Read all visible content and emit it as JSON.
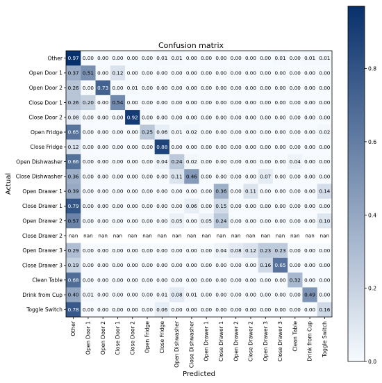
{
  "chart_data": {
    "type": "heatmap",
    "title": "Confusion matrix",
    "xlabel": "Predicted",
    "ylabel": "Actual",
    "labels": [
      "Other",
      "Open Door 1",
      "Open Door 2",
      "Close Door 1",
      "Close Door 2",
      "Open Fridge",
      "Close Fridge",
      "Open Dishwasher",
      "Close Dishwasher",
      "Open Drawer 1",
      "Close Drawer 1",
      "Open Drawer 2",
      "Close Drawer 2",
      "Open Drawer 3",
      "Close Drawer 3",
      "Clean Table",
      "Drink from Cup",
      "Toggle Switch"
    ],
    "matrix": [
      [
        "0.97",
        "0.00",
        "0.00",
        "0.00",
        "0.00",
        "0.00",
        "0.01",
        "0.01",
        "0.00",
        "0.00",
        "0.00",
        "0.00",
        "0.00",
        "0.00",
        "0.01",
        "0.00",
        "0.01",
        "0.01"
      ],
      [
        "0.37",
        "0.51",
        "0.00",
        "0.12",
        "0.00",
        "0.00",
        "0.00",
        "0.00",
        "0.00",
        "0.00",
        "0.00",
        "0.00",
        "0.00",
        "0.00",
        "0.00",
        "0.00",
        "0.00",
        "0.00"
      ],
      [
        "0.26",
        "0.00",
        "0.73",
        "0.00",
        "0.01",
        "0.00",
        "0.00",
        "0.00",
        "0.00",
        "0.00",
        "0.00",
        "0.00",
        "0.00",
        "0.00",
        "0.00",
        "0.00",
        "0.00",
        "0.00"
      ],
      [
        "0.26",
        "0.20",
        "0.00",
        "0.54",
        "0.00",
        "0.00",
        "0.00",
        "0.00",
        "0.00",
        "0.00",
        "0.00",
        "0.00",
        "0.00",
        "0.00",
        "0.00",
        "0.00",
        "0.00",
        "0.00"
      ],
      [
        "0.08",
        "0.00",
        "0.00",
        "0.00",
        "0.92",
        "0.00",
        "0.00",
        "0.00",
        "0.00",
        "0.00",
        "0.00",
        "0.00",
        "0.00",
        "0.00",
        "0.00",
        "0.00",
        "0.00",
        "0.00"
      ],
      [
        "0.65",
        "0.00",
        "0.00",
        "0.00",
        "0.00",
        "0.25",
        "0.06",
        "0.01",
        "0.02",
        "0.00",
        "0.00",
        "0.00",
        "0.00",
        "0.00",
        "0.00",
        "0.00",
        "0.00",
        "0.02"
      ],
      [
        "0.12",
        "0.00",
        "0.00",
        "0.00",
        "0.00",
        "0.00",
        "0.88",
        "0.00",
        "0.00",
        "0.00",
        "0.00",
        "0.00",
        "0.00",
        "0.00",
        "0.00",
        "0.00",
        "0.00",
        "0.00"
      ],
      [
        "0.66",
        "0.00",
        "0.00",
        "0.00",
        "0.00",
        "0.00",
        "0.04",
        "0.24",
        "0.02",
        "0.00",
        "0.00",
        "0.00",
        "0.00",
        "0.00",
        "0.00",
        "0.04",
        "0.00",
        "0.00"
      ],
      [
        "0.36",
        "0.00",
        "0.00",
        "0.00",
        "0.00",
        "0.00",
        "0.00",
        "0.11",
        "0.46",
        "0.00",
        "0.00",
        "0.00",
        "0.00",
        "0.07",
        "0.00",
        "0.00",
        "0.00",
        "0.00"
      ],
      [
        "0.39",
        "0.00",
        "0.00",
        "0.00",
        "0.00",
        "0.00",
        "0.00",
        "0.00",
        "0.00",
        "0.00",
        "0.36",
        "0.00",
        "0.11",
        "0.00",
        "0.00",
        "0.00",
        "0.00",
        "0.14"
      ],
      [
        "0.79",
        "0.00",
        "0.00",
        "0.00",
        "0.00",
        "0.00",
        "0.00",
        "0.00",
        "0.06",
        "0.00",
        "0.15",
        "0.00",
        "0.00",
        "0.00",
        "0.00",
        "0.00",
        "0.00",
        "0.00"
      ],
      [
        "0.57",
        "0.00",
        "0.00",
        "0.00",
        "0.00",
        "0.00",
        "0.00",
        "0.05",
        "0.00",
        "0.05",
        "0.24",
        "0.00",
        "0.00",
        "0.00",
        "0.00",
        "0.00",
        "0.00",
        "0.10"
      ],
      [
        "nan",
        "nan",
        "nan",
        "nan",
        "nan",
        "nan",
        "nan",
        "nan",
        "nan",
        "nan",
        "nan",
        "nan",
        "nan",
        "nan",
        "nan",
        "nan",
        "nan",
        "nan"
      ],
      [
        "0.29",
        "0.00",
        "0.00",
        "0.00",
        "0.00",
        "0.00",
        "0.00",
        "0.00",
        "0.00",
        "0.00",
        "0.04",
        "0.08",
        "0.12",
        "0.23",
        "0.23",
        "0.00",
        "0.00",
        "0.00"
      ],
      [
        "0.19",
        "0.00",
        "0.00",
        "0.00",
        "0.00",
        "0.00",
        "0.00",
        "0.00",
        "0.00",
        "0.00",
        "0.00",
        "0.00",
        "0.00",
        "0.16",
        "0.65",
        "0.00",
        "0.00",
        "0.00"
      ],
      [
        "0.68",
        "0.00",
        "0.00",
        "0.00",
        "0.00",
        "0.00",
        "0.00",
        "0.00",
        "0.00",
        "0.00",
        "0.00",
        "0.00",
        "0.00",
        "0.00",
        "0.00",
        "0.32",
        "0.00",
        "0.00"
      ],
      [
        "0.40",
        "0.01",
        "0.00",
        "0.00",
        "0.00",
        "0.00",
        "0.01",
        "0.08",
        "0.01",
        "0.00",
        "0.00",
        "0.00",
        "0.00",
        "0.00",
        "0.00",
        "0.00",
        "0.49",
        "0.00"
      ],
      [
        "0.78",
        "0.00",
        "0.00",
        "0.00",
        "0.00",
        "0.00",
        "0.06",
        "0.00",
        "0.00",
        "0.00",
        "0.00",
        "0.00",
        "0.00",
        "0.00",
        "0.00",
        "0.00",
        "0.00",
        "0.16"
      ]
    ],
    "vmin": 0,
    "vmax": 0.97,
    "colormap": [
      "#f7fbff",
      "#08306b"
    ],
    "colorbar_ticks": [
      "0.0",
      "0.2",
      "0.4",
      "0.6",
      "0.8"
    ],
    "grid": false
  }
}
